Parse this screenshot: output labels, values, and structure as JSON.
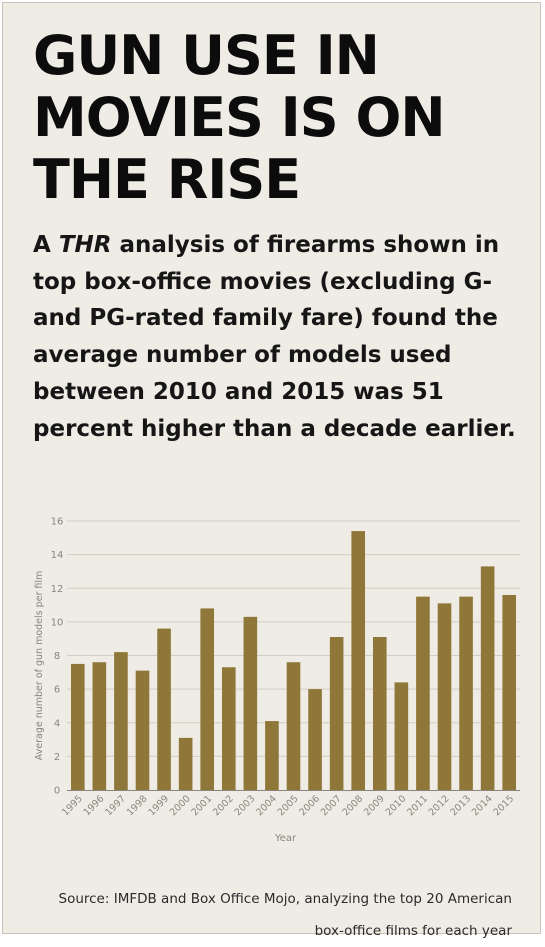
{
  "headline": "GUN USE IN MOVIES IS ON THE RISE",
  "deck": {
    "before": "A ",
    "italic": "THR",
    "after": " analysis of firearms shown in top box-office movies (excluding G- and PG-rated family fare) found the average number of models used between 2010 and 2015 was 51 percent higher than a decade earlier."
  },
  "source": "Source: IMFDB and Box Office Mojo, analyzing the top 20 American box-office films for each year",
  "colors": {
    "bar": "#8f7639",
    "grid": "#d3cec4",
    "axis": "#8a857c",
    "label": "#8a857c"
  },
  "chart_data": {
    "type": "bar",
    "categories": [
      "1995",
      "1996",
      "1997",
      "1998",
      "1999",
      "2000",
      "2001",
      "2002",
      "2003",
      "2004",
      "2005",
      "2006",
      "2007",
      "2008",
      "2009",
      "2010",
      "2011",
      "2012",
      "2013",
      "2014",
      "2015"
    ],
    "values": [
      7.5,
      7.6,
      8.2,
      7.1,
      9.6,
      3.1,
      10.8,
      7.3,
      10.3,
      4.1,
      7.6,
      6.0,
      9.1,
      15.4,
      9.1,
      6.4,
      11.5,
      11.1,
      11.5,
      13.3,
      11.6
    ],
    "xlabel": "Year",
    "ylabel": "Average number of gun models per film",
    "ylim": [
      0,
      16
    ],
    "yticks": [
      0,
      2,
      4,
      6,
      8,
      10,
      12,
      14,
      16
    ],
    "grid": true,
    "legend": "none"
  }
}
